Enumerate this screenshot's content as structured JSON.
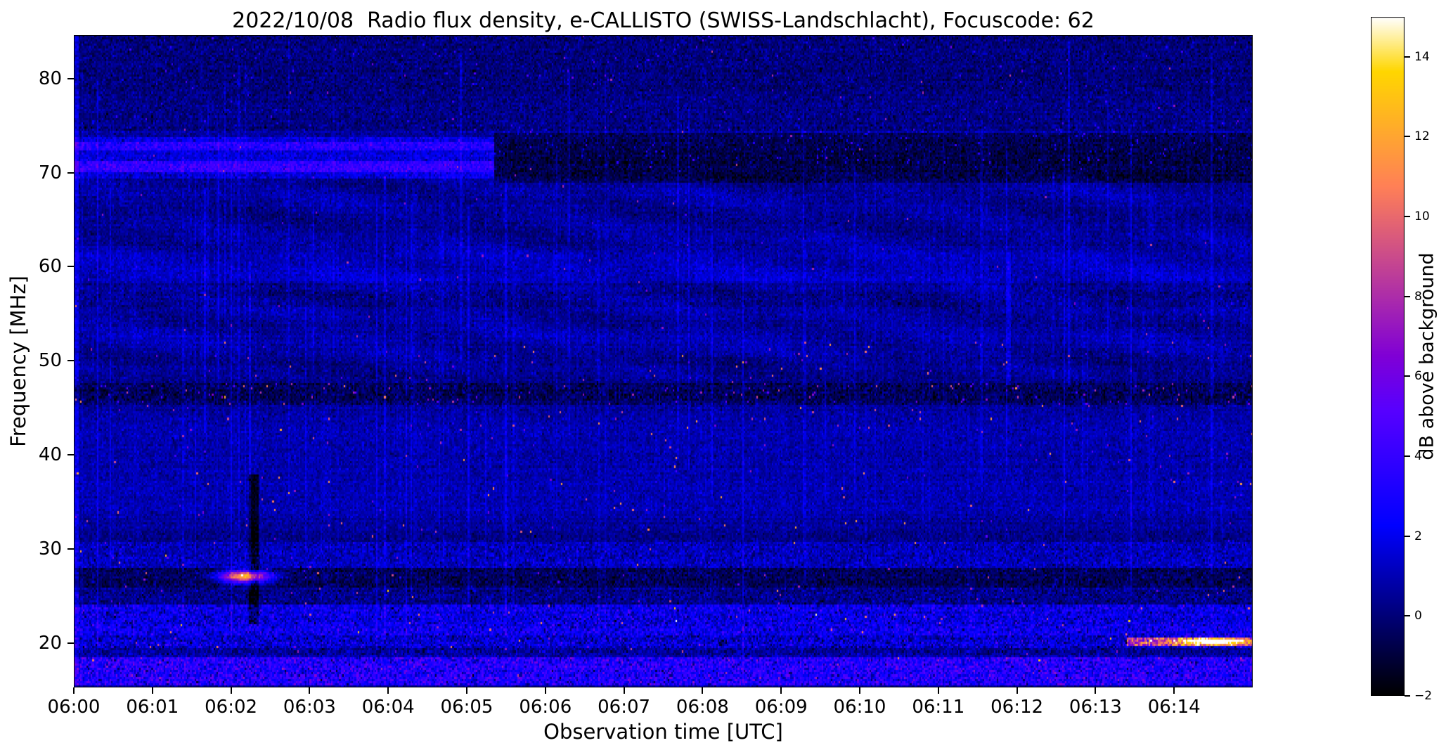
{
  "chart_data": {
    "type": "heatmap",
    "title": "2022/10/08  Radio flux density, e-CALLISTO (SWISS-Landschlacht), Focuscode: 62",
    "xlabel": "Observation time [UTC]",
    "ylabel": "Frequency [MHz]",
    "colorbar_label": "dB above background",
    "colormap": "gnuplot2",
    "x_range_minutes": [
      0,
      15
    ],
    "x_start_label": "06:00",
    "y_range": [
      15.3,
      84.6
    ],
    "value_range": [
      -2,
      15
    ],
    "background_level_db": 0.6,
    "noise_sigma_db": 0.95,
    "x_ticks": [
      {
        "minute": 0,
        "label": "06:00"
      },
      {
        "minute": 1,
        "label": "06:01"
      },
      {
        "minute": 2,
        "label": "06:02"
      },
      {
        "minute": 3,
        "label": "06:03"
      },
      {
        "minute": 4,
        "label": "06:04"
      },
      {
        "minute": 5,
        "label": "06:05"
      },
      {
        "minute": 6,
        "label": "06:06"
      },
      {
        "minute": 7,
        "label": "06:07"
      },
      {
        "minute": 8,
        "label": "06:08"
      },
      {
        "minute": 9,
        "label": "06:09"
      },
      {
        "minute": 10,
        "label": "06:10"
      },
      {
        "minute": 11,
        "label": "06:11"
      },
      {
        "minute": 12,
        "label": "06:12"
      },
      {
        "minute": 13,
        "label": "06:13"
      },
      {
        "minute": 14,
        "label": "06:14"
      }
    ],
    "y_ticks": [
      {
        "value": 20,
        "label": "20"
      },
      {
        "value": 30,
        "label": "30"
      },
      {
        "value": 40,
        "label": "40"
      },
      {
        "value": 50,
        "label": "50"
      },
      {
        "value": 60,
        "label": "60"
      },
      {
        "value": 70,
        "label": "70"
      },
      {
        "value": 80,
        "label": "80"
      }
    ],
    "colorbar_ticks": [
      {
        "value": -2,
        "label": "−2"
      },
      {
        "value": 0,
        "label": "0"
      },
      {
        "value": 2,
        "label": "2"
      },
      {
        "value": 4,
        "label": "4"
      },
      {
        "value": 6,
        "label": "6"
      },
      {
        "value": 8,
        "label": "8"
      },
      {
        "value": 10,
        "label": "10"
      },
      {
        "value": 12,
        "label": "12"
      },
      {
        "value": 14,
        "label": "14"
      }
    ],
    "features": [
      {
        "type": "band",
        "desc": "bright interference band 70-74 MHz until ~06:05:20",
        "f": [
          69.4,
          73.8
        ],
        "t": [
          0,
          5.35
        ],
        "level": 1.4,
        "sigma": 0.9
      },
      {
        "type": "band",
        "desc": "bright line ~70.7 MHz",
        "f": [
          70.2,
          71.3
        ],
        "t": [
          0,
          5.35
        ],
        "level": 2.2,
        "sigma": 0.7
      },
      {
        "type": "band",
        "desc": "bright line ~72.8 MHz",
        "f": [
          72.4,
          73.3
        ],
        "t": [
          0,
          5.35
        ],
        "level": 1.6,
        "sigma": 0.7
      },
      {
        "type": "band",
        "desc": "darker band 69-74 MHz after 06:05:20",
        "f": [
          69.0,
          74.2
        ],
        "t": [
          5.35,
          15
        ],
        "level": -1.1,
        "sigma": 0.6
      },
      {
        "type": "impulses",
        "desc": "sparse dashes in 71-75 MHz after 06:05",
        "f": [
          71,
          75
        ],
        "t": [
          5.35,
          15
        ],
        "prob": 0.02,
        "amp": [
          1.5,
          4.5
        ]
      },
      {
        "type": "band",
        "desc": "dark sparse region above 74.5 MHz",
        "f": [
          74.5,
          84.6
        ],
        "t": [
          0,
          15
        ],
        "level": -0.75,
        "sigma": 0.55
      },
      {
        "type": "impulses",
        "desc": "sparse vertical noise streaks above 74.5 MHz",
        "f": [
          74.5,
          84.6
        ],
        "t": [
          0,
          15
        ],
        "prob": 0.006,
        "amp": [
          1.5,
          5
        ]
      },
      {
        "type": "waves",
        "desc": "faint curved fringes 48-70 MHz",
        "f": [
          48,
          70
        ],
        "amp": 0.45
      },
      {
        "type": "band",
        "desc": "dark lane ~56-58 MHz",
        "f": [
          55.8,
          58.2
        ],
        "t": [
          0,
          15
        ],
        "level": -0.5,
        "sigma": 0.5
      },
      {
        "type": "band",
        "desc": "dark lane with RFI dots ~46-47.5 MHz",
        "f": [
          45.4,
          47.6
        ],
        "t": [
          0,
          15
        ],
        "level": -0.85,
        "sigma": 0.9
      },
      {
        "type": "impulses",
        "desc": "RFI dots on 46 MHz lane",
        "f": [
          45.4,
          47.6
        ],
        "t": [
          0,
          15
        ],
        "prob": 0.012,
        "amp": [
          4,
          9
        ]
      },
      {
        "type": "impulses",
        "desc": "scattered impulsive RFI dots 18-52 MHz",
        "f": [
          18,
          52
        ],
        "t": [
          0,
          15
        ],
        "prob": 0.0035,
        "amp": [
          4,
          12
        ]
      },
      {
        "type": "impulses",
        "desc": "sparser impulsive dots 52-84 MHz",
        "f": [
          52,
          84.6
        ],
        "t": [
          0,
          15
        ],
        "prob": 0.0012,
        "amp": [
          3,
          9
        ]
      },
      {
        "type": "band",
        "desc": "moderate noisy band 28-30.5 MHz",
        "f": [
          28.0,
          30.6
        ],
        "t": [
          0,
          15
        ],
        "level": 0.8,
        "sigma": 1.1
      },
      {
        "type": "band",
        "desc": "dark band 25.8-27.9 MHz",
        "f": [
          25.8,
          27.9
        ],
        "t": [
          0,
          15
        ],
        "level": -1.0,
        "sigma": 0.8
      },
      {
        "type": "band",
        "desc": "darker band 24-25.8 MHz",
        "f": [
          24.0,
          25.8
        ],
        "t": [
          0,
          15
        ],
        "level": -0.2,
        "sigma": 0.9
      },
      {
        "type": "band",
        "desc": "bright noisy band 20.8-24 MHz",
        "f": [
          20.8,
          24.0
        ],
        "t": [
          0,
          15
        ],
        "level": 1.6,
        "sigma": 1.7
      },
      {
        "type": "band",
        "desc": "variable 19.4-20.8 MHz line with bright segments",
        "f": [
          19.4,
          20.8
        ],
        "t": [
          0,
          15
        ],
        "level": 0.7,
        "sigma": 1.8
      },
      {
        "type": "band",
        "desc": "dark gap 18.4-19.4 MHz",
        "f": [
          18.4,
          19.4
        ],
        "t": [
          0,
          15
        ],
        "level": -0.5,
        "sigma": 1.0
      },
      {
        "type": "band",
        "desc": "bright purple noisy bottom band below 18.4 MHz",
        "f": [
          15.3,
          18.4
        ],
        "t": [
          0,
          15
        ],
        "level": 2.3,
        "sigma": 2.4
      },
      {
        "type": "blob",
        "desc": "bright orange-yellow burst at ~06:02:10, 27 MHz",
        "t": 2.17,
        "f": 27.0,
        "tw": 0.22,
        "fw": 0.45,
        "amp": 13
      },
      {
        "type": "vline",
        "desc": "dark vertical dropout streak at ~06:02:15",
        "t": 2.28,
        "tw": 0.06,
        "f": [
          22,
          38
        ],
        "level": -2.4
      },
      {
        "type": "band",
        "desc": "bright orange dashes at ~20 MHz from 06:13:25 to 06:15",
        "f": [
          19.7,
          20.6
        ],
        "t": [
          13.4,
          15
        ],
        "level": 7,
        "sigma": 3.0
      },
      {
        "type": "blob",
        "desc": "strong orange streak ~06:14:30 at 20 MHz",
        "t": 14.5,
        "f": 20.1,
        "tw": 0.3,
        "fw": 0.25,
        "amp": 11
      },
      {
        "type": "vline",
        "desc": "bright column at left edge 06:00",
        "t": 0.02,
        "tw": 0.025,
        "f": [
          15.3,
          84.6
        ],
        "level": 1.4
      }
    ]
  }
}
